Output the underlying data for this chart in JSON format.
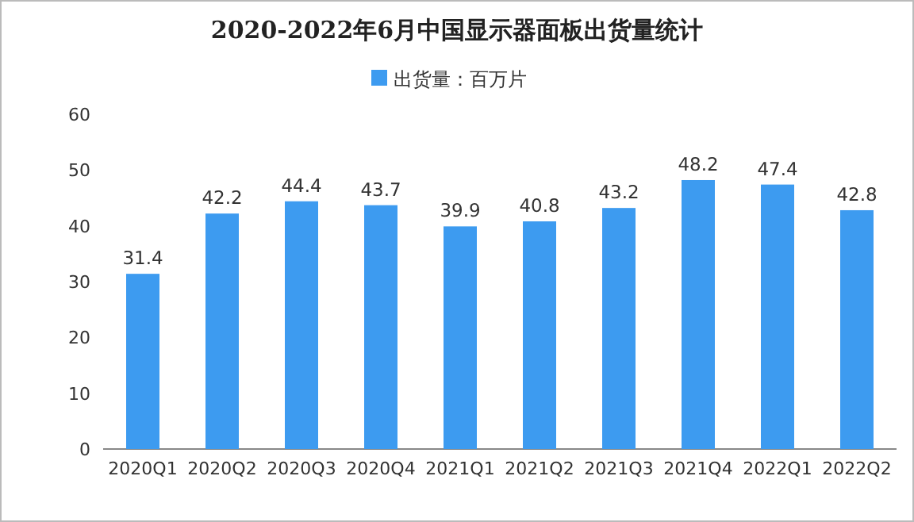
{
  "chart_data": {
    "type": "bar",
    "title": "2020-2022年6月中国显示器面板出货量统计",
    "categories": [
      "2020Q1",
      "2020Q2",
      "2020Q3",
      "2020Q4",
      "2021Q1",
      "2021Q2",
      "2021Q3",
      "2021Q4",
      "2022Q1",
      "2022Q2"
    ],
    "series": [
      {
        "name": "出货量：百万片",
        "color": "#3d9bf0",
        "values": [
          31.4,
          42.2,
          44.4,
          43.7,
          39.9,
          40.8,
          43.2,
          48.2,
          47.4,
          42.8
        ]
      }
    ],
    "ylim": [
      0,
      60
    ],
    "yticks": [
      0,
      10,
      20,
      30,
      40,
      50,
      60
    ],
    "data_labels": true,
    "legend": "top"
  }
}
